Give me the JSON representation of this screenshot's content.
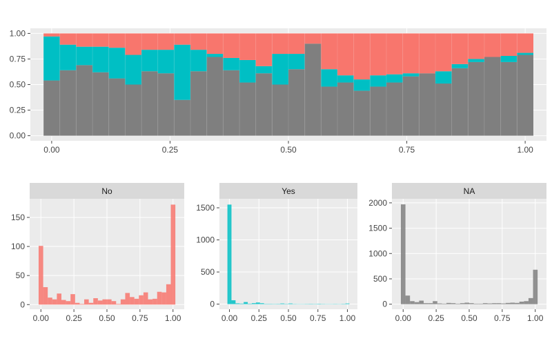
{
  "colors": {
    "No": "#F8766D",
    "Yes": "#00BFC4",
    "NA": "#7F7F7F",
    "panel": "#EBEBEB",
    "grid": "#FFFFFF",
    "strip": "#D9D9D9"
  },
  "chart_data": [
    {
      "type": "bar",
      "subtype": "stacked-proportion-histogram",
      "title": "",
      "xlabel": "",
      "ylabel": "",
      "xlim": [
        -0.045,
        1.045
      ],
      "ylim": [
        -0.05,
        1.05
      ],
      "xticks": [
        0,
        0.25,
        0.5,
        0.75,
        1
      ],
      "xtick_labels": [
        "0.00",
        "0.25",
        "0.50",
        "0.75",
        "1.00"
      ],
      "yticks": [
        0,
        0.25,
        0.5,
        0.75,
        1
      ],
      "ytick_labels": [
        "0.00",
        "0.25",
        "0.50",
        "0.75",
        "1.00"
      ],
      "grid": true,
      "bin_starts": [
        -0.0172,
        0.0172,
        0.0517,
        0.0862,
        0.1207,
        0.1552,
        0.1897,
        0.2241,
        0.2586,
        0.2931,
        0.3276,
        0.3621,
        0.3966,
        0.431,
        0.4655,
        0.5,
        0.5345,
        0.569,
        0.6034,
        0.6379,
        0.6724,
        0.7069,
        0.7414,
        0.7759,
        0.8103,
        0.8448,
        0.8793,
        0.9138,
        0.9483,
        0.9828
      ],
      "bin_width": 0.0345,
      "series": [
        {
          "name": "NA",
          "values": [
            0.54,
            0.64,
            0.69,
            0.62,
            0.56,
            0.5,
            0.63,
            0.61,
            0.35,
            0.63,
            0.77,
            0.64,
            0.52,
            0.61,
            0.5,
            0.65,
            0.9,
            0.48,
            0.52,
            0.44,
            0.48,
            0.52,
            0.58,
            0.61,
            0.51,
            0.66,
            0.72,
            0.77,
            0.72,
            0.79
          ]
        },
        {
          "name": "Yes",
          "values": [
            0.43,
            0.25,
            0.18,
            0.25,
            0.3,
            0.29,
            0.21,
            0.23,
            0.54,
            0.21,
            0.03,
            0.12,
            0.22,
            0.07,
            0.3,
            0.15,
            0.0,
            0.17,
            0.07,
            0.11,
            0.11,
            0.08,
            0.03,
            0.0,
            0.12,
            0.04,
            0.03,
            0.0,
            0.06,
            0.02
          ]
        },
        {
          "name": "No",
          "values": [
            0.03,
            0.11,
            0.13,
            0.13,
            0.14,
            0.21,
            0.16,
            0.16,
            0.11,
            0.16,
            0.2,
            0.24,
            0.26,
            0.32,
            0.2,
            0.2,
            0.1,
            0.35,
            0.41,
            0.45,
            0.41,
            0.4,
            0.39,
            0.39,
            0.37,
            0.3,
            0.25,
            0.23,
            0.22,
            0.19
          ]
        }
      ]
    },
    {
      "type": "bar",
      "subtype": "histogram",
      "panel_label": "No",
      "series_name": "No",
      "xlim": [
        -0.085,
        1.085
      ],
      "ylim": [
        -8,
        182
      ],
      "xticks": [
        0,
        0.25,
        0.5,
        0.75,
        1
      ],
      "xtick_labels": [
        "0.00",
        "0.25",
        "0.50",
        "0.75",
        "1.00"
      ],
      "yticks": [
        0,
        50,
        100,
        150
      ],
      "ytick_labels": [
        "0",
        "50",
        "100",
        "150"
      ],
      "bin_start": -0.0172,
      "bin_width": 0.0345,
      "values": [
        101,
        30,
        12,
        9,
        19,
        8,
        6,
        18,
        3,
        1,
        9,
        3,
        11,
        7,
        9,
        9,
        6,
        1,
        9,
        20,
        13,
        10,
        16,
        21,
        9,
        10,
        22,
        21,
        35,
        172
      ]
    },
    {
      "type": "bar",
      "subtype": "histogram",
      "panel_label": "Yes",
      "series_name": "Yes",
      "xlim": [
        -0.085,
        1.085
      ],
      "ylim": [
        -80,
        1640
      ],
      "xticks": [
        0,
        0.25,
        0.5,
        0.75,
        1
      ],
      "xtick_labels": [
        "0.00",
        "0.25",
        "0.50",
        "0.75",
        "1.00"
      ],
      "yticks": [
        0,
        500,
        1000,
        1500
      ],
      "ytick_labels": [
        "0",
        "500",
        "1000",
        "1500"
      ],
      "bin_start": -0.0172,
      "bin_width": 0.0345,
      "values": [
        1550,
        60,
        12,
        8,
        32,
        7,
        15,
        25,
        14,
        5,
        5,
        4,
        5,
        10,
        5,
        10,
        4,
        3,
        3,
        4,
        5,
        4,
        6,
        4,
        3,
        3,
        4,
        3,
        5,
        10
      ]
    },
    {
      "type": "bar",
      "subtype": "histogram",
      "panel_label": "NA",
      "series_name": "NA",
      "xlim": [
        -0.085,
        1.085
      ],
      "ylim": [
        -100,
        2080
      ],
      "xticks": [
        0,
        0.25,
        0.5,
        0.75,
        1
      ],
      "xtick_labels": [
        "0.00",
        "0.25",
        "0.50",
        "0.75",
        "1.00"
      ],
      "yticks": [
        0,
        500,
        1000,
        1500,
        2000
      ],
      "ytick_labels": [
        "0",
        "500",
        "1000",
        "1500",
        "2000"
      ],
      "bin_start": -0.0172,
      "bin_width": 0.0345,
      "values": [
        1970,
        170,
        60,
        40,
        70,
        20,
        20,
        60,
        15,
        10,
        25,
        20,
        10,
        20,
        30,
        20,
        10,
        10,
        20,
        15,
        20,
        20,
        15,
        25,
        30,
        25,
        50,
        60,
        120,
        680
      ]
    }
  ]
}
